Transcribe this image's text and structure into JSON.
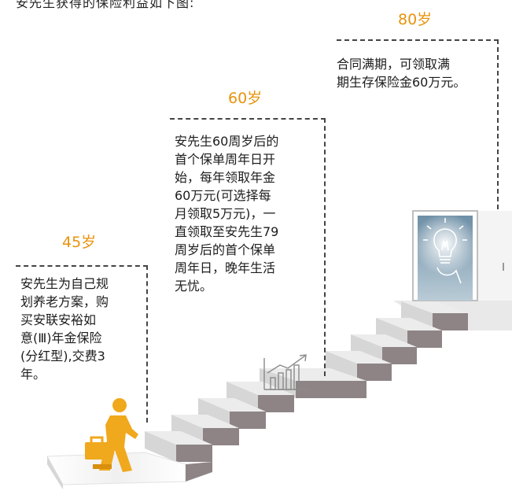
{
  "intro_text": "安先生获得的保险利益如下图:",
  "stages": [
    {
      "age": "45岁",
      "text_lines": [
        "安先生为自己规",
        "划养老方案，购",
        "买安联安裕如",
        "意(Ⅲ)年金保险",
        "(分红型),交费3",
        "年。"
      ]
    },
    {
      "age": "60岁",
      "text_lines": [
        "安先生60周岁后的",
        "首个保单周年日开",
        "始，每年领取年金",
        "60万元(可选择每",
        "月领取5万元)，一",
        "直领取至安先生79",
        "周岁后的首个保单",
        "周年日，晚年生活",
        "无忧。"
      ]
    },
    {
      "age": "80岁",
      "text_lines": [
        "合同满期，可领取满",
        "期生存保险金60万元。"
      ]
    }
  ],
  "colors": {
    "accent": "#e8930c",
    "stair_top": "#eeeeee",
    "stair_front": "#8e8486",
    "figure": "#f0a81c"
  },
  "icons": [
    "businessman-icon",
    "growth-chart-icon",
    "lightbulb-icon"
  ]
}
